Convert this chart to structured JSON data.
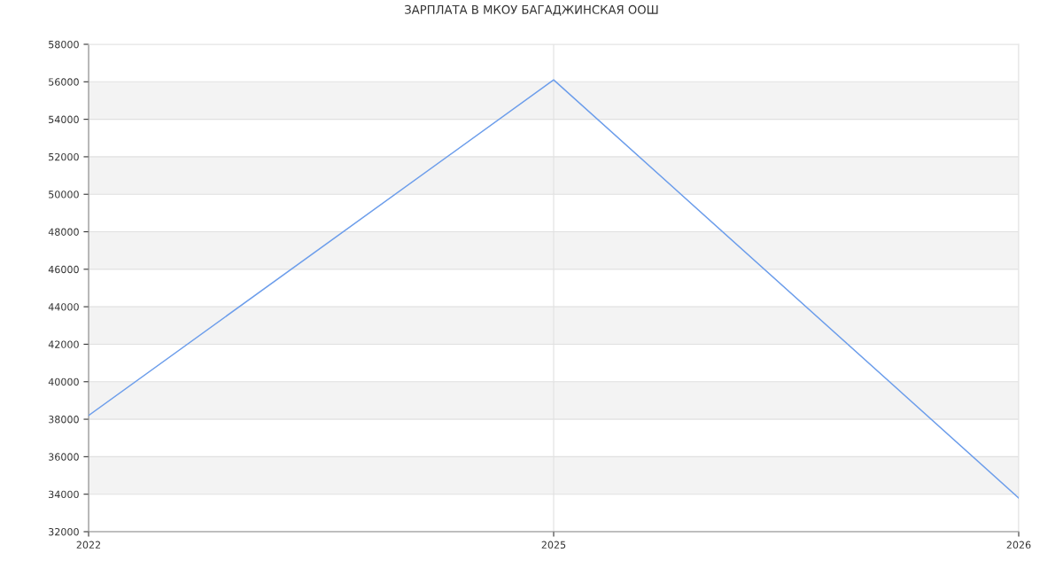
{
  "chart_data": {
    "type": "line",
    "title": "ЗАРПЛАТА В МКОУ БАГАДЖИНСКАЯ ООШ",
    "categories": [
      "2022",
      "2025",
      "2026"
    ],
    "series": [
      {
        "color": "#6d9eeb",
        "values": [
          38200,
          56100,
          33800
        ]
      }
    ],
    "ylim": [
      32000,
      58000
    ],
    "yticks": [
      32000,
      34000,
      36000,
      38000,
      40000,
      42000,
      44000,
      46000,
      48000,
      50000,
      52000,
      54000,
      56000,
      58000
    ],
    "bands": [
      {
        "axis": "y",
        "from": 34000,
        "to": 36000,
        "color": "#f3f3f3"
      },
      {
        "axis": "y",
        "from": 38000,
        "to": 40000,
        "color": "#f3f3f3"
      },
      {
        "axis": "y",
        "from": 42000,
        "to": 44000,
        "color": "#f3f3f3"
      },
      {
        "axis": "y",
        "from": 46000,
        "to": 48000,
        "color": "#f3f3f3"
      },
      {
        "axis": "y",
        "from": 50000,
        "to": 52000,
        "color": "#f3f3f3"
      },
      {
        "axis": "y",
        "from": 54000,
        "to": 56000,
        "color": "#f3f3f3"
      }
    ],
    "grid": true,
    "marker": "none",
    "line_style": "solid"
  }
}
